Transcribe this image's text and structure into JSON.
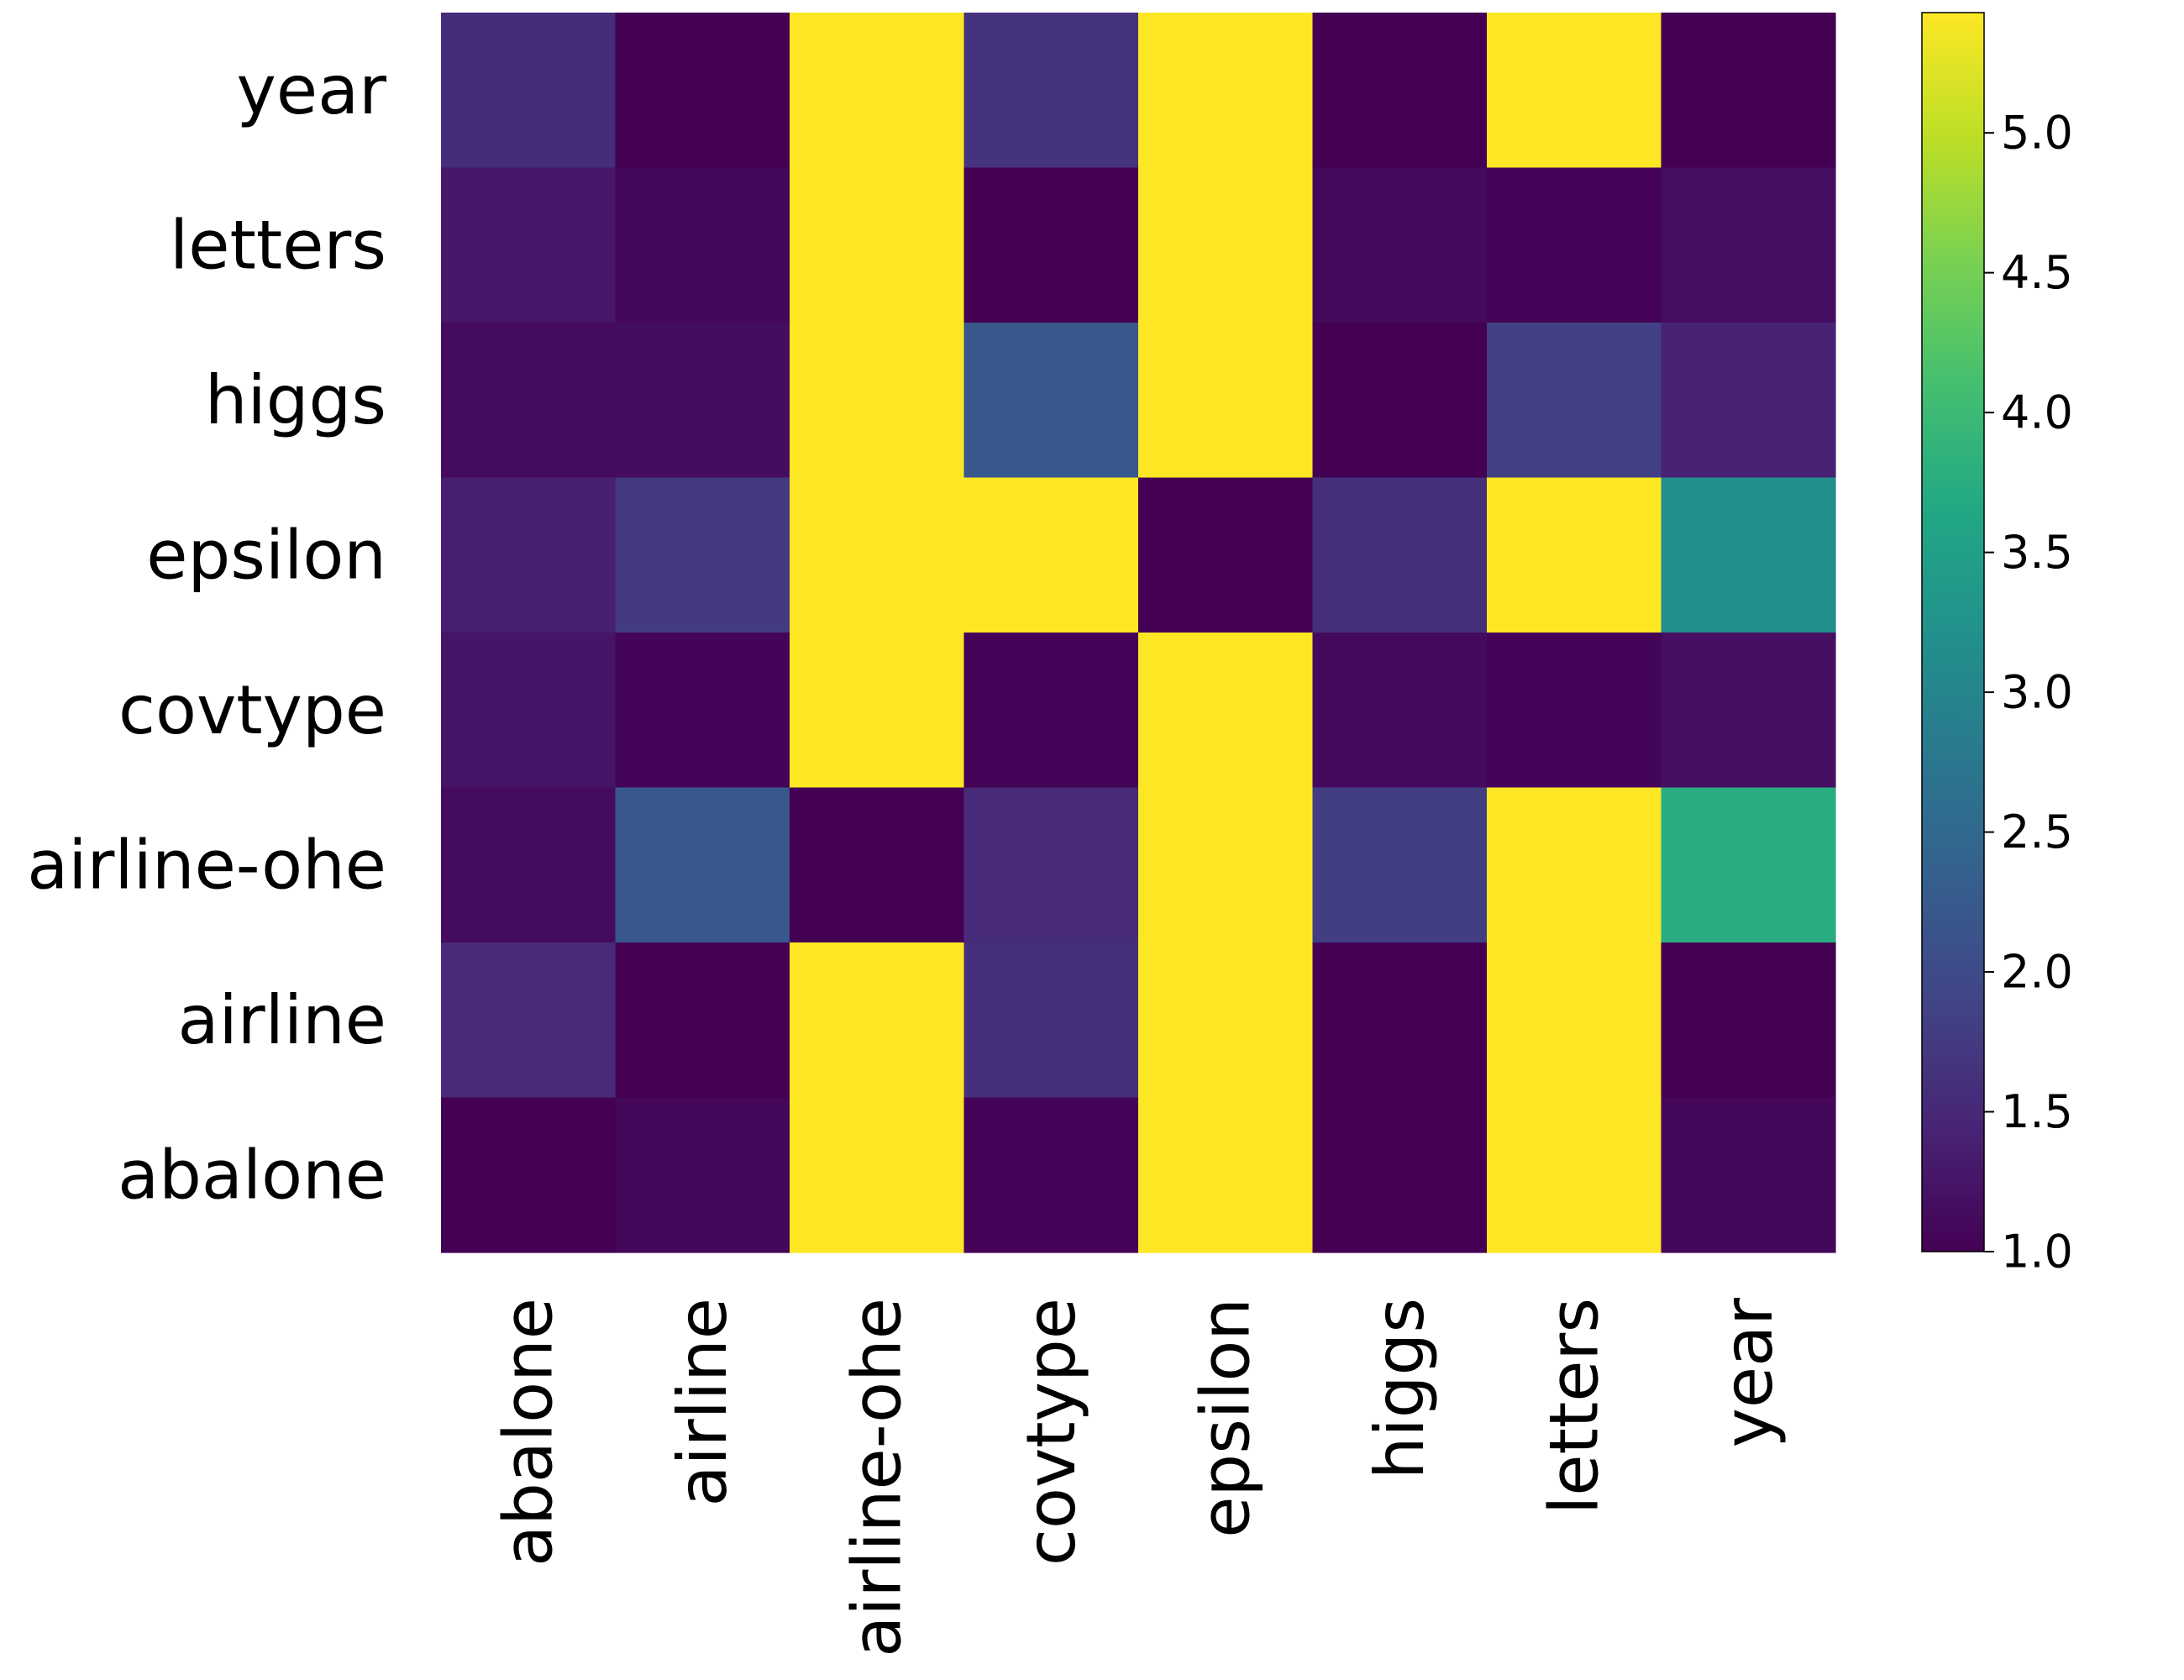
{
  "chart_data": {
    "type": "heatmap",
    "colormap": "viridis",
    "rows": [
      "year",
      "letters",
      "higgs",
      "epsilon",
      "covtype",
      "airline-ohe",
      "airline",
      "abalone"
    ],
    "columns": [
      "abalone",
      "airline",
      "airline-ohe",
      "covtype",
      "epsilon",
      "higgs",
      "letters",
      "year"
    ],
    "values": [
      [
        1.55,
        1.0,
        5.43,
        1.65,
        5.43,
        1.0,
        5.43,
        1.0
      ],
      [
        1.28,
        1.07,
        5.43,
        1.0,
        5.43,
        1.1,
        1.03,
        1.17
      ],
      [
        1.13,
        1.15,
        5.43,
        2.2,
        5.43,
        1.0,
        1.85,
        1.42
      ],
      [
        1.38,
        1.75,
        5.43,
        5.43,
        1.0,
        1.6,
        5.43,
        3.2
      ],
      [
        1.25,
        1.05,
        5.43,
        1.03,
        5.43,
        1.12,
        1.05,
        1.18
      ],
      [
        1.13,
        2.2,
        1.0,
        1.52,
        5.43,
        1.8,
        5.43,
        3.75
      ],
      [
        1.52,
        1.0,
        5.43,
        1.6,
        5.43,
        1.0,
        5.43,
        1.0
      ],
      [
        1.0,
        1.07,
        5.43,
        1.03,
        5.43,
        1.0,
        5.43,
        1.07
      ]
    ],
    "colorbar": {
      "min": 1.0,
      "max": 5.43,
      "ticks": [
        "1.0",
        "1.5",
        "2.0",
        "2.5",
        "3.0",
        "3.5",
        "4.0",
        "4.5",
        "5.0"
      ],
      "tick_values": [
        1.0,
        1.5,
        2.0,
        2.5,
        3.0,
        3.5,
        4.0,
        4.5,
        5.0
      ]
    }
  }
}
